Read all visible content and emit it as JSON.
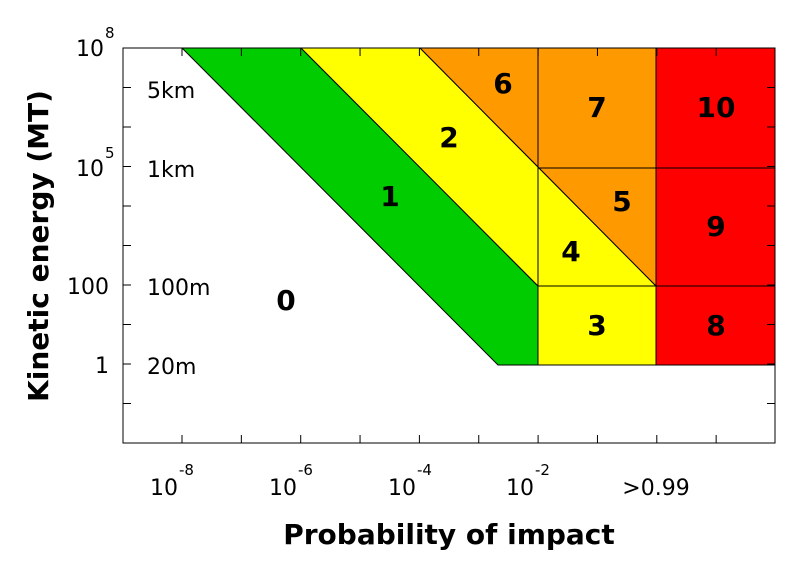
{
  "axes": {
    "x_label": "Probability of impact",
    "y_label": "Kinetic energy (MT)"
  },
  "x_ticks": [
    {
      "base": "10",
      "exponent": "-8"
    },
    {
      "base": "10",
      "exponent": "-6"
    },
    {
      "base": "10",
      "exponent": "-4"
    },
    {
      "base": "10",
      "exponent": "-2"
    },
    {
      "base": ">0.99"
    }
  ],
  "y_ticks": [
    {
      "base": "10",
      "exponent": "8"
    },
    {
      "base": "10",
      "exponent": "5"
    },
    {
      "base": "100"
    },
    {
      "base": "1"
    }
  ],
  "sizes": [
    "5km",
    "1km",
    "100m",
    "20m"
  ],
  "regions": [
    "0",
    "1",
    "2",
    "3",
    "4",
    "5",
    "6",
    "7",
    "8",
    "9",
    "10"
  ]
}
